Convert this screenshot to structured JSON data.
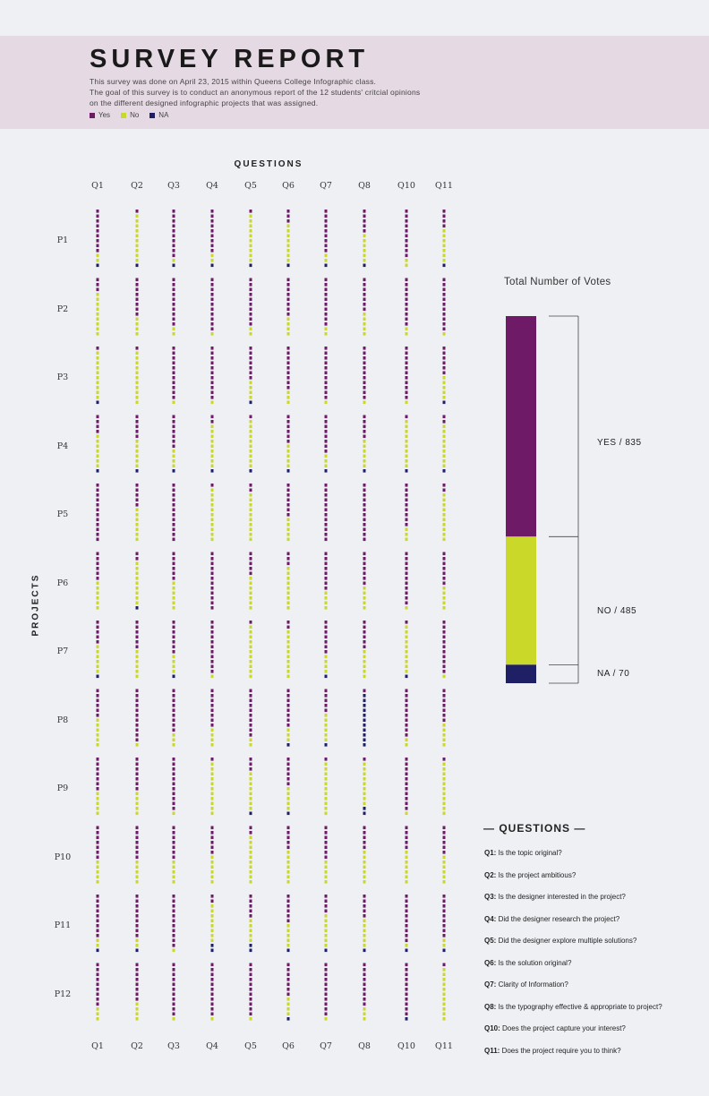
{
  "header": {
    "title": "SURVEY REPORT",
    "desc_line1": "This survey was done on April 23, 2015 within Queens College Infographic class.",
    "desc_line2": "The goal of this survey is to conduct an anonymous report of the 12 students' critcial opinions",
    "desc_line3": "on the different designed infographic projects that was assigned.",
    "legend": [
      {
        "label": "Yes",
        "color": "#6e1a66"
      },
      {
        "label": "No",
        "color": "#c9d829"
      },
      {
        "label": "NA",
        "color": "#1f1f66"
      }
    ]
  },
  "grid": {
    "questions_title": "QUESTIONS",
    "projects_title": "PROJECTS",
    "question_labels": [
      "Q1",
      "Q2",
      "Q3",
      "Q4",
      "Q5",
      "Q6",
      "Q7",
      "Q8",
      "Q10",
      "Q11"
    ],
    "project_labels": [
      "P1",
      "P2",
      "P3",
      "P4",
      "P5",
      "P6",
      "P7",
      "P8",
      "P9",
      "P10",
      "P11",
      "P12"
    ]
  },
  "total": {
    "title": "Total Number of Votes",
    "yes_label": "YES / 835",
    "no_label": "NO / 485",
    "na_label": "NA / 70"
  },
  "questions_list": {
    "title": "— QUESTIONS —",
    "items": [
      {
        "num": "Q1:",
        "text": " Is the topic original?"
      },
      {
        "num": "Q2:",
        "text": " Is the project ambitious?"
      },
      {
        "num": "Q3:",
        "text": " Is the designer interested in the project?"
      },
      {
        "num": "Q4:",
        "text": " Did the designer research the project?"
      },
      {
        "num": "Q5:",
        "text": " Did the designer explore multiple solutions?"
      },
      {
        "num": "Q6:",
        "text": " Is the solution original?"
      },
      {
        "num": "Q7:",
        "text": " Clarity of Information?"
      },
      {
        "num": "Q8:",
        "text": " Is the typography effective & appropriate to project?"
      },
      {
        "num": "Q10:",
        "text": " Does the project capture your interest?"
      },
      {
        "num": "Q11:",
        "text": " Does the project require you to think?"
      }
    ]
  },
  "colors": {
    "yes": "#6e1a66",
    "no": "#c9d829",
    "na": "#1f1f66"
  },
  "chart_data": [
    {
      "type": "table",
      "title": "SURVEY REPORT",
      "xlabel": "QUESTIONS",
      "ylabel": "PROJECTS",
      "categories": [
        "Q1",
        "Q2",
        "Q3",
        "Q4",
        "Q5",
        "Q6",
        "Q7",
        "Q8",
        "Q10",
        "Q11"
      ],
      "rows": [
        "P1",
        "P2",
        "P3",
        "P4",
        "P5",
        "P6",
        "P7",
        "P8",
        "P9",
        "P10",
        "P11",
        "P12"
      ],
      "series": [
        {
          "name": "Yes",
          "values": [
            [
              9,
              1,
              10,
              9,
              1,
              3,
              9,
              5,
              10,
              4
            ],
            [
              3,
              8,
              10,
              11,
              10,
              8,
              10,
              7,
              10,
              11
            ],
            [
              1,
              1,
              11,
              11,
              7,
              9,
              11,
              11,
              11,
              6
            ],
            [
              4,
              5,
              7,
              2,
              1,
              6,
              8,
              5,
              1,
              2
            ],
            [
              12,
              5,
              12,
              1,
              2,
              7,
              12,
              12,
              9,
              2
            ],
            [
              6,
              2,
              6,
              12,
              5,
              3,
              8,
              7,
              11,
              7
            ],
            [
              5,
              6,
              7,
              11,
              1,
              2,
              7,
              6,
              1,
              11
            ],
            [
              6,
              11,
              9,
              8,
              10,
              8,
              5,
              1,
              10,
              7
            ],
            [
              7,
              7,
              11,
              1,
              3,
              6,
              1,
              1,
              11,
              1
            ],
            [
              7,
              7,
              7,
              6,
              2,
              5,
              7,
              5,
              5,
              6
            ],
            [
              9,
              9,
              11,
              2,
              5,
              6,
              4,
              5,
              10,
              9
            ],
            [
              9,
              8,
              11,
              11,
              11,
              7,
              11,
              9,
              11,
              1
            ]
          ]
        },
        {
          "name": "No",
          "values": [
            [
              2,
              10,
              1,
              2,
              10,
              8,
              2,
              6,
              2,
              7
            ],
            [
              9,
              4,
              2,
              1,
              2,
              4,
              2,
              5,
              2,
              1
            ],
            [
              10,
              11,
              1,
              1,
              4,
              3,
              1,
              1,
              1,
              5
            ],
            [
              7,
              6,
              4,
              9,
              10,
              5,
              3,
              6,
              10,
              9
            ],
            [
              0,
              7,
              0,
              11,
              10,
              5,
              0,
              0,
              3,
              10
            ],
            [
              6,
              9,
              6,
              0,
              7,
              9,
              4,
              5,
              1,
              5
            ],
            [
              6,
              6,
              4,
              1,
              11,
              10,
              4,
              6,
              10,
              1
            ],
            [
              6,
              1,
              3,
              4,
              2,
              3,
              6,
              0,
              2,
              5
            ],
            [
              5,
              5,
              1,
              11,
              8,
              5,
              11,
              9,
              1,
              11
            ],
            [
              5,
              5,
              5,
              6,
              10,
              7,
              5,
              7,
              7,
              6
            ],
            [
              2,
              2,
              1,
              8,
              5,
              5,
              7,
              6,
              1,
              2
            ],
            [
              3,
              4,
              1,
              1,
              1,
              4,
              1,
              3,
              0,
              11
            ]
          ]
        },
        {
          "name": "NA",
          "values": [
            [
              1,
              1,
              1,
              1,
              1,
              1,
              1,
              1,
              0,
              1
            ],
            [
              0,
              0,
              0,
              0,
              0,
              0,
              0,
              0,
              0,
              0
            ],
            [
              1,
              0,
              0,
              0,
              1,
              0,
              0,
              0,
              0,
              1
            ],
            [
              1,
              1,
              1,
              1,
              1,
              1,
              1,
              1,
              1,
              1
            ],
            [
              0,
              0,
              0,
              0,
              0,
              0,
              0,
              0,
              0,
              0
            ],
            [
              0,
              1,
              0,
              0,
              0,
              0,
              0,
              0,
              0,
              0
            ],
            [
              1,
              0,
              1,
              0,
              0,
              0,
              1,
              0,
              1,
              0
            ],
            [
              0,
              0,
              0,
              0,
              0,
              1,
              1,
              11,
              0,
              0
            ],
            [
              0,
              0,
              0,
              0,
              1,
              1,
              0,
              2,
              0,
              0
            ],
            [
              0,
              0,
              0,
              0,
              0,
              0,
              0,
              0,
              0,
              0
            ],
            [
              1,
              1,
              0,
              2,
              2,
              1,
              1,
              1,
              1,
              1
            ],
            [
              0,
              0,
              0,
              0,
              0,
              1,
              0,
              0,
              1,
              0
            ]
          ]
        }
      ]
    },
    {
      "type": "bar",
      "title": "Total Number of Votes",
      "categories": [
        "YES",
        "NO",
        "NA"
      ],
      "values": [
        835,
        485,
        70
      ]
    }
  ]
}
